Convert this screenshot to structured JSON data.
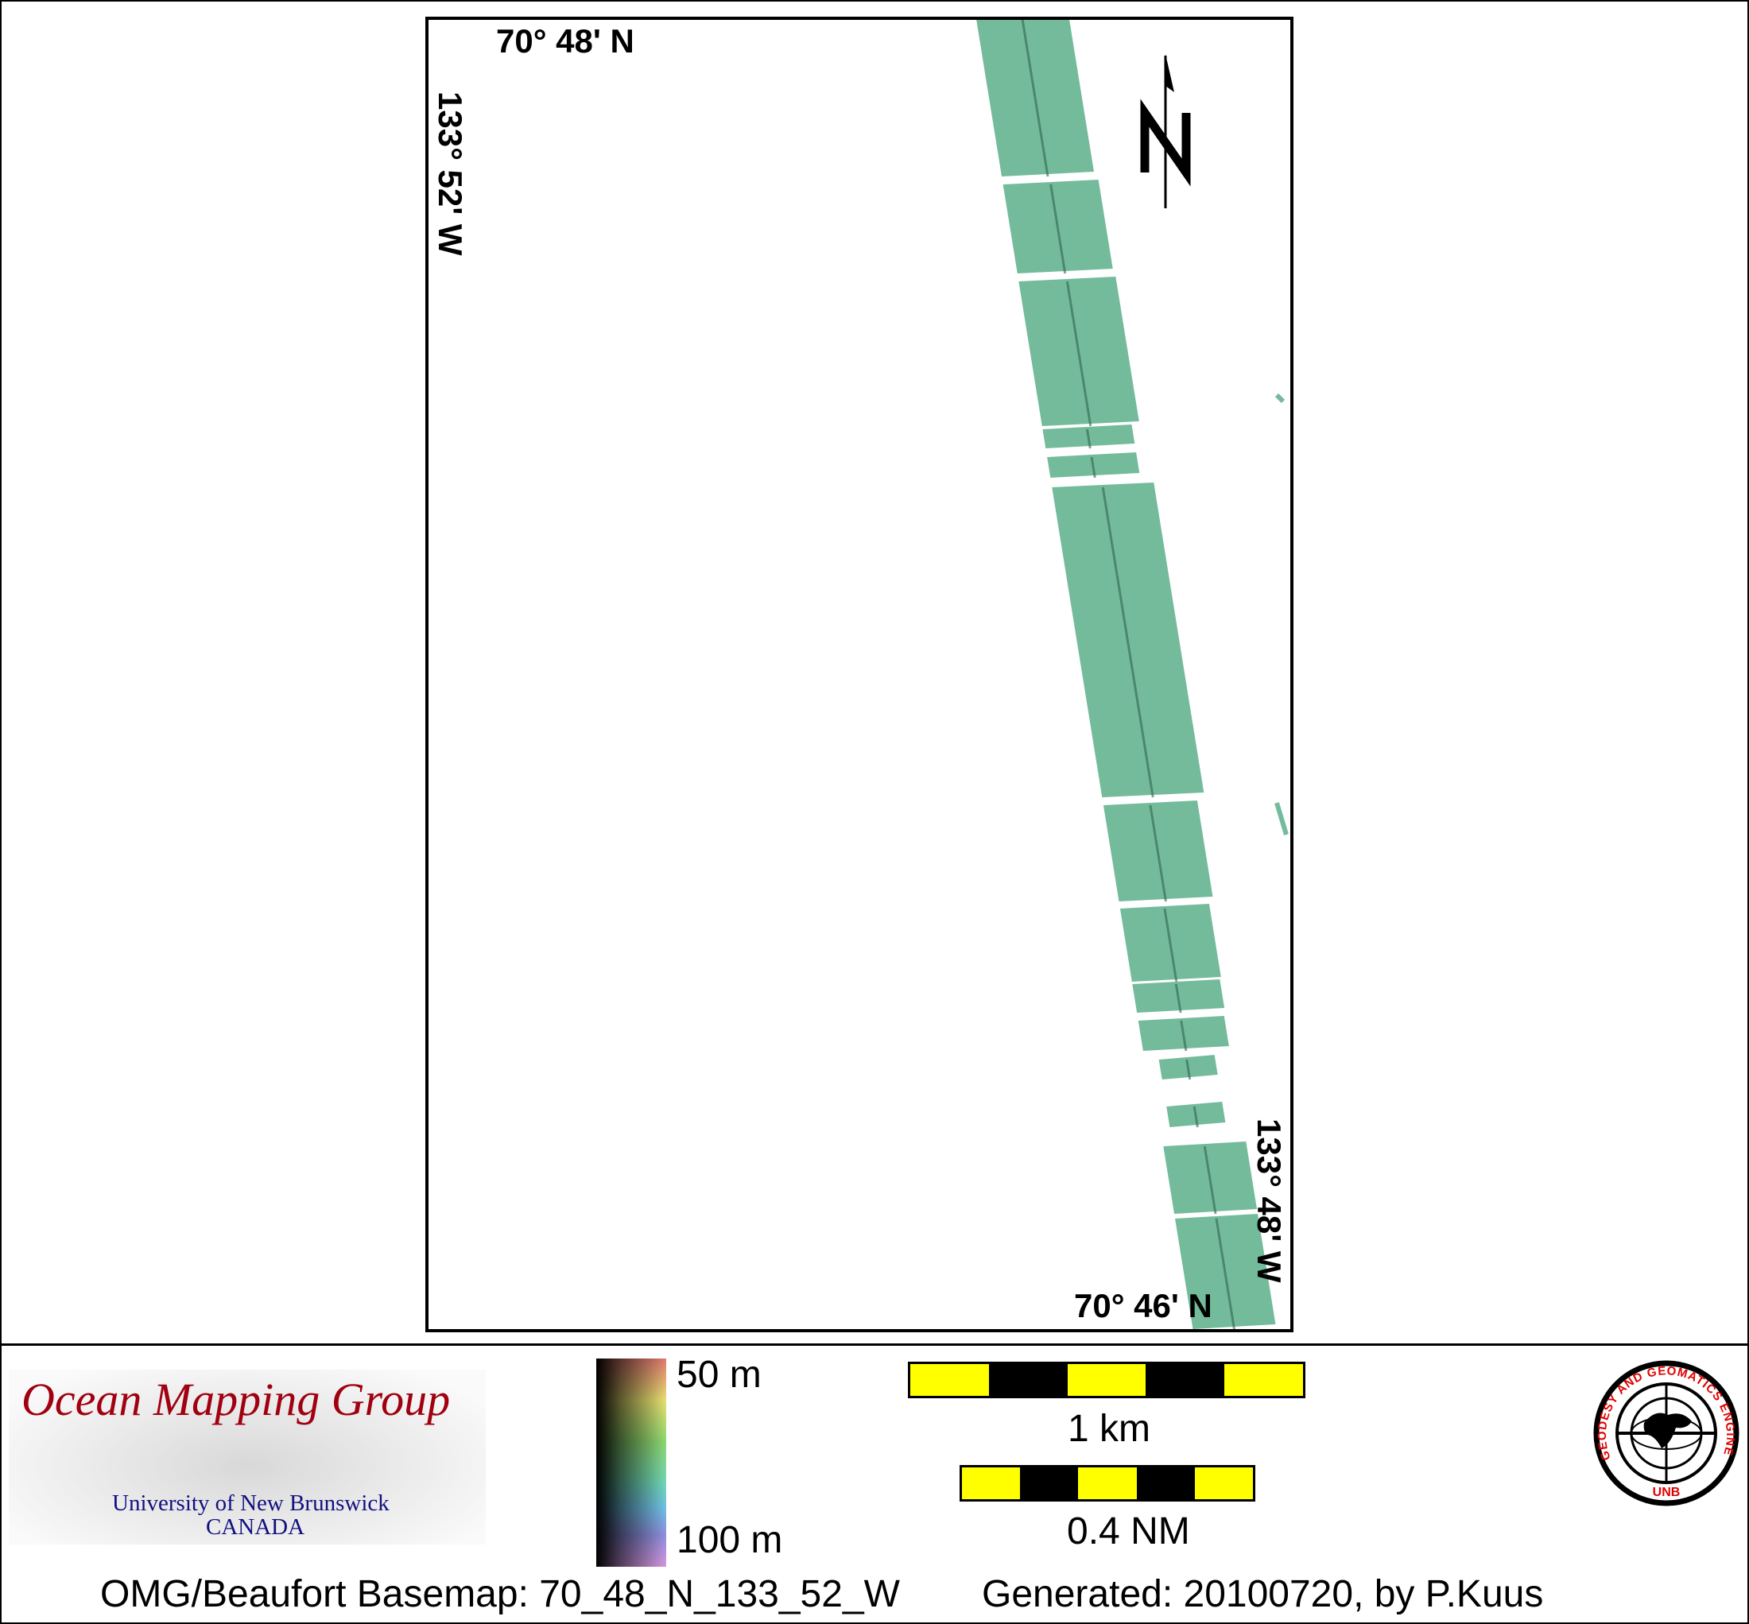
{
  "map": {
    "top_left_lat": "70° 48' N",
    "left_lon": "133° 52' W",
    "right_lon": "133° 48' W",
    "bottom_lat": "70° 46' N",
    "north_arrow_label": "N",
    "swath_color": "#74bb9c"
  },
  "legend": {
    "logo_title": "Ocean Mapping Group",
    "logo_university": "University of New Brunswick",
    "logo_country": "CANADA",
    "depth_top": "50 m",
    "depth_bottom": "100 m",
    "scale_km": "1 km",
    "scale_nm": "0.4 NM",
    "unb_logo_text": "GEODESY AND GEOMATICS ENGINEERING",
    "unb_logo_sub": "UNB"
  },
  "footer": {
    "basemap": "OMG/Beaufort Basemap: 70_48_N_133_52_W",
    "generated": "Generated: 20100720, by P.Kuus"
  }
}
